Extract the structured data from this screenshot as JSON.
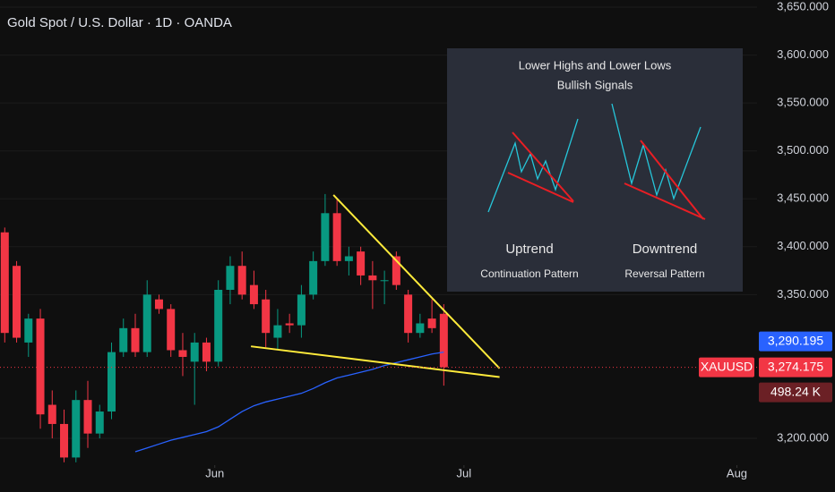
{
  "chart_data": {
    "type": "candlestick",
    "title": "Gold Spot / U.S. Dollar · 1D · OANDA",
    "symbol": "XAUUSD",
    "x": [
      0,
      1,
      2,
      3,
      4,
      5,
      6,
      7,
      8,
      9,
      10,
      11,
      12,
      13,
      14,
      15,
      16,
      17,
      18,
      19,
      20,
      21,
      22,
      23,
      24,
      25,
      26,
      27,
      28,
      29,
      30,
      31,
      32,
      33,
      34,
      35,
      36,
      37
    ],
    "open": [
      3415,
      3380,
      3300,
      3325,
      3235,
      3215,
      3180,
      3240,
      3205,
      3228,
      3290,
      3315,
      3290,
      3345,
      3335,
      3292,
      3280,
      3300,
      3280,
      3355,
      3380,
      3360,
      3345,
      3305,
      3320,
      3318,
      3350,
      3385,
      3435,
      3385,
      3395,
      3370,
      3365,
      3390,
      3350,
      3310,
      3325,
      3330
    ],
    "high": [
      3420,
      3385,
      3330,
      3335,
      3250,
      3230,
      3250,
      3260,
      3235,
      3300,
      3325,
      3330,
      3365,
      3350,
      3340,
      3310,
      3310,
      3305,
      3365,
      3390,
      3395,
      3375,
      3355,
      3335,
      3330,
      3360,
      3395,
      3455,
      3450,
      3400,
      3400,
      3385,
      3375,
      3395,
      3355,
      3330,
      3345,
      3340
    ],
    "low": [
      3300,
      3300,
      3285,
      3210,
      3200,
      3175,
      3175,
      3190,
      3200,
      3220,
      3285,
      3285,
      3285,
      3330,
      3285,
      3265,
      3235,
      3270,
      3275,
      3340,
      3345,
      3335,
      3295,
      3292,
      3310,
      3305,
      3345,
      3380,
      3380,
      3370,
      3360,
      3335,
      3340,
      3355,
      3300,
      3305,
      3310,
      3255
    ],
    "close": [
      3310,
      3305,
      3325,
      3225,
      3215,
      3180,
      3240,
      3205,
      3228,
      3290,
      3315,
      3290,
      3350,
      3335,
      3292,
      3285,
      3300,
      3280,
      3355,
      3380,
      3350,
      3340,
      3310,
      3318,
      3318,
      3350,
      3385,
      3435,
      3385,
      3390,
      3370,
      3365,
      3365,
      3360,
      3310,
      3320,
      3315,
      3274.175
    ],
    "up_color": "#089981",
    "down_color": "#f23645",
    "ma": {
      "color": "#2962ff",
      "values": [
        null,
        null,
        null,
        null,
        null,
        null,
        null,
        null,
        null,
        null,
        null,
        3186,
        3190,
        3194,
        3198,
        3201,
        3204,
        3207,
        3212,
        3220,
        3228,
        3234,
        3238,
        3241,
        3244,
        3247,
        3252,
        3258,
        3263,
        3266,
        3269,
        3272,
        3276,
        3279,
        3282,
        3285,
        3288,
        3290
      ]
    },
    "trendlines": [
      {
        "color": "#ffeb3b",
        "points": [
          [
            27.7,
            3454
          ],
          [
            41.7,
            3273
          ]
        ]
      },
      {
        "color": "#ffeb3b",
        "points": [
          [
            20.75,
            3296
          ],
          [
            41.7,
            3264
          ]
        ]
      }
    ],
    "xlim": [
      -0.4,
      63.4
    ],
    "xticks": [
      {
        "value": 17.7,
        "label": "Jun"
      },
      {
        "value": 38.7,
        "label": "Jul"
      },
      {
        "value": 61.7,
        "label": "Aug"
      }
    ],
    "ylim": [
      3172,
      3657.5
    ],
    "yticks": [
      {
        "value": 3200,
        "label": "3,200.000"
      },
      {
        "value": 3350,
        "label": "3,350.000"
      },
      {
        "value": 3400,
        "label": "3,400.000"
      },
      {
        "value": 3450,
        "label": "3,450.000"
      },
      {
        "value": 3500,
        "label": "3,500.000"
      },
      {
        "value": 3550,
        "label": "3,550.000"
      },
      {
        "value": 3600,
        "label": "3,600.000"
      },
      {
        "value": 3650,
        "label": "3,650.000"
      }
    ],
    "ma_price": {
      "value": 3290.195,
      "label": "3,290.195"
    },
    "last_price": {
      "value": 3274.175,
      "label": "3,274.175"
    },
    "volume": {
      "value": 498240,
      "label": "498.24 K"
    }
  },
  "inset": {
    "title": "Lower Highs and Lower Lows",
    "subtitle": "Bullish Signals",
    "left_label": "Uptrend",
    "left_caption": "Continuation Pattern",
    "right_label": "Downtrend",
    "right_caption": "Reversal Pattern"
  }
}
